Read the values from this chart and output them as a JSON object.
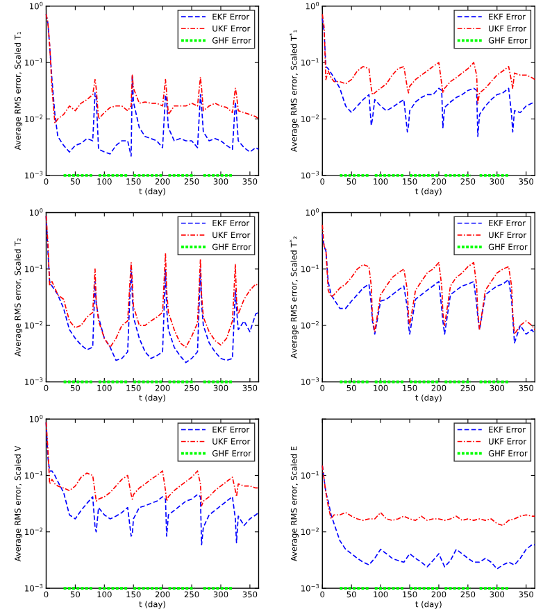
{
  "chart_data": [
    {
      "type": "line",
      "xlabel": "t (day)",
      "ylabel": "Average RMS error, Scaled T₁",
      "log": "y",
      "grid": false,
      "legend": "top right",
      "marker": "none",
      "xlim": [
        0,
        365
      ],
      "xticks": [
        0,
        50,
        100,
        150,
        200,
        250,
        300,
        350
      ],
      "ylim": [
        0.001,
        1
      ],
      "yticks": [
        {
          "value": 0.001,
          "label": "10$^{−3}$"
        },
        {
          "value": 0.01,
          "label": "10$^{−2}$"
        },
        {
          "value": 0.1,
          "label": "10$^{−1}$"
        },
        {
          "value": 1,
          "label": "10$^{0}$"
        }
      ],
      "x": [
        0,
        3,
        6,
        10,
        15,
        20,
        30,
        40,
        50,
        60,
        70,
        80,
        84,
        86,
        90,
        100,
        110,
        120,
        130,
        140,
        146,
        148,
        150,
        160,
        170,
        180,
        190,
        200,
        205,
        207,
        210,
        220,
        230,
        240,
        250,
        260,
        265,
        267,
        270,
        280,
        290,
        300,
        310,
        320,
        325,
        327,
        330,
        340,
        350,
        360,
        365
      ],
      "series": [
        {
          "name": "EKF Error",
          "color": "#0000ff",
          "line_style": "dashed",
          "values": [
            0.72,
            0.5,
            0.2,
            0.05,
            0.012,
            0.0049,
            0.0034,
            0.0026,
            0.0034,
            0.0037,
            0.0045,
            0.0041,
            0.029,
            0.024,
            0.0029,
            0.0026,
            0.0024,
            0.0034,
            0.0041,
            0.0041,
            0.0022,
            0.06,
            0.02,
            0.007,
            0.0049,
            0.0045,
            0.0041,
            0.0031,
            0.027,
            0.02,
            0.007,
            0.0041,
            0.0045,
            0.0041,
            0.0041,
            0.0031,
            0.027,
            0.017,
            0.0059,
            0.0041,
            0.0045,
            0.0041,
            0.0034,
            0.0029,
            0.02,
            0.012,
            0.0041,
            0.0031,
            0.0026,
            0.0031,
            0.0029
          ]
        },
        {
          "name": "UKF Error",
          "color": "#ff0000",
          "line_style": "dashdot",
          "values": [
            0.72,
            0.51,
            0.21,
            0.035,
            0.0084,
            0.01,
            0.012,
            0.017,
            0.014,
            0.019,
            0.022,
            0.027,
            0.05,
            0.035,
            0.01,
            0.013,
            0.016,
            0.017,
            0.017,
            0.014,
            0.017,
            0.06,
            0.035,
            0.019,
            0.02,
            0.019,
            0.019,
            0.017,
            0.05,
            0.029,
            0.012,
            0.017,
            0.017,
            0.017,
            0.019,
            0.017,
            0.055,
            0.035,
            0.014,
            0.017,
            0.019,
            0.017,
            0.016,
            0.013,
            0.035,
            0.027,
            0.014,
            0.013,
            0.012,
            0.011,
            0.01
          ]
        },
        {
          "name": "GHF Error",
          "color": "#00ff00",
          "line_style": "dotted",
          "x": [
            30,
            80,
            85,
            90,
            140,
            145,
            150,
            200,
            205,
            210,
            255,
            260,
            270,
            320
          ],
          "values": [
            0.001,
            0.001,
            null,
            0.001,
            0.001,
            null,
            0.001,
            0.001,
            null,
            0.001,
            0.001,
            null,
            0.001,
            0.001
          ]
        }
      ]
    },
    {
      "type": "line",
      "xlabel": "t (day)",
      "ylabel": "Average RMS error, Scaled T$^{*}$₁",
      "log": "y",
      "grid": false,
      "legend": "top right",
      "marker": "none",
      "xlim": [
        0,
        365
      ],
      "xticks": [
        0,
        50,
        100,
        150,
        200,
        250,
        300,
        350
      ],
      "ylim": [
        0.001,
        1
      ],
      "yticks": [
        {
          "value": 0.001,
          "label": "10$^{−3}$"
        },
        {
          "value": 0.01,
          "label": "10$^{−2}$"
        },
        {
          "value": 0.1,
          "label": "10$^{−1}$"
        },
        {
          "value": 1,
          "label": "10$^{0}$"
        }
      ],
      "x": [
        0,
        3,
        6,
        10,
        15,
        20,
        30,
        40,
        50,
        60,
        70,
        80,
        84,
        86,
        90,
        100,
        110,
        120,
        130,
        140,
        146,
        148,
        150,
        160,
        170,
        180,
        190,
        200,
        205,
        207,
        210,
        220,
        230,
        240,
        250,
        260,
        265,
        267,
        270,
        280,
        290,
        300,
        310,
        320,
        325,
        327,
        330,
        340,
        350,
        360,
        365
      ],
      "series": [
        {
          "name": "EKF Error",
          "color": "#0000ff",
          "line_style": "dashed",
          "values": [
            0.61,
            0.35,
            0.085,
            0.078,
            0.065,
            0.054,
            0.035,
            0.017,
            0.013,
            0.017,
            0.022,
            0.027,
            0.0077,
            0.01,
            0.022,
            0.017,
            0.014,
            0.016,
            0.019,
            0.022,
            0.0059,
            0.0077,
            0.014,
            0.02,
            0.024,
            0.027,
            0.027,
            0.035,
            0.032,
            0.007,
            0.016,
            0.02,
            0.024,
            0.027,
            0.032,
            0.035,
            0.032,
            0.0049,
            0.012,
            0.017,
            0.022,
            0.027,
            0.029,
            0.035,
            0.012,
            0.0059,
            0.014,
            0.013,
            0.017,
            0.019,
            0.02
          ]
        },
        {
          "name": "UKF Error",
          "color": "#ff0000",
          "line_style": "dashdot",
          "values": [
            0.72,
            0.42,
            0.05,
            0.071,
            0.054,
            0.046,
            0.046,
            0.042,
            0.05,
            0.071,
            0.085,
            0.078,
            0.035,
            0.027,
            0.029,
            0.035,
            0.042,
            0.06,
            0.078,
            0.085,
            0.035,
            0.029,
            0.038,
            0.05,
            0.06,
            0.071,
            0.085,
            0.1,
            0.042,
            0.029,
            0.035,
            0.046,
            0.054,
            0.065,
            0.078,
            0.1,
            0.06,
            0.019,
            0.029,
            0.035,
            0.046,
            0.06,
            0.071,
            0.085,
            0.046,
            0.035,
            0.065,
            0.06,
            0.06,
            0.054,
            0.05
          ]
        },
        {
          "name": "GHF Error",
          "color": "#00ff00",
          "line_style": "dotted",
          "x": [
            30,
            80,
            85,
            90,
            140,
            145,
            150,
            200,
            205,
            210,
            255,
            260,
            270,
            320
          ],
          "values": [
            0.001,
            0.001,
            null,
            0.001,
            0.001,
            null,
            0.001,
            0.001,
            null,
            0.001,
            0.001,
            null,
            0.001,
            0.001
          ]
        }
      ]
    },
    {
      "type": "line",
      "xlabel": "t (day)",
      "ylabel": "Average RMS error, Scaled T₂",
      "log": "y",
      "grid": false,
      "legend": "top right",
      "marker": "none",
      "xlim": [
        0,
        365
      ],
      "xticks": [
        0,
        50,
        100,
        150,
        200,
        250,
        300,
        350
      ],
      "ylim": [
        0.001,
        1
      ],
      "yticks": [
        {
          "value": 0.001,
          "label": "10$^{−3}$"
        },
        {
          "value": 0.01,
          "label": "10$^{−2}$"
        },
        {
          "value": 0.1,
          "label": "10$^{−1}$"
        },
        {
          "value": 1,
          "label": "10$^{0}$"
        }
      ],
      "x": [
        0,
        3,
        6,
        10,
        15,
        20,
        30,
        40,
        50,
        60,
        70,
        80,
        84,
        86,
        90,
        100,
        110,
        120,
        130,
        140,
        146,
        148,
        150,
        160,
        170,
        180,
        190,
        200,
        205,
        207,
        210,
        220,
        230,
        240,
        250,
        260,
        265,
        267,
        270,
        280,
        290,
        300,
        310,
        320,
        325,
        327,
        330,
        340,
        350,
        360,
        365
      ],
      "series": [
        {
          "name": "EKF Error",
          "color": "#0000ff",
          "line_style": "dashed",
          "values": [
            0.87,
            0.21,
            0.06,
            0.05,
            0.042,
            0.035,
            0.02,
            0.0084,
            0.0059,
            0.0045,
            0.0037,
            0.0041,
            0.06,
            0.024,
            0.014,
            0.0059,
            0.0041,
            0.0024,
            0.0026,
            0.0034,
            0.12,
            0.035,
            0.014,
            0.0059,
            0.0034,
            0.0026,
            0.0029,
            0.0034,
            0.1,
            0.02,
            0.0084,
            0.0041,
            0.0029,
            0.0022,
            0.0026,
            0.0034,
            0.1,
            0.024,
            0.01,
            0.0049,
            0.0034,
            0.0026,
            0.0024,
            0.0026,
            0.042,
            0.02,
            0.0084,
            0.012,
            0.0077,
            0.016,
            0.017
          ]
        },
        {
          "name": "UKF Error",
          "color": "#ff0000",
          "line_style": "dashdot",
          "values": [
            0.87,
            0.3,
            0.05,
            0.06,
            0.046,
            0.035,
            0.029,
            0.012,
            0.0091,
            0.01,
            0.014,
            0.017,
            0.1,
            0.027,
            0.012,
            0.0059,
            0.0041,
            0.0059,
            0.01,
            0.012,
            0.13,
            0.06,
            0.022,
            0.01,
            0.01,
            0.012,
            0.014,
            0.017,
            0.19,
            0.042,
            0.017,
            0.0084,
            0.0049,
            0.0041,
            0.0064,
            0.011,
            0.15,
            0.035,
            0.014,
            0.0077,
            0.0054,
            0.0045,
            0.0059,
            0.012,
            0.12,
            0.029,
            0.016,
            0.029,
            0.042,
            0.054,
            0.05
          ]
        },
        {
          "name": "GHF Error",
          "color": "#00ff00",
          "line_style": "dotted",
          "x": [
            30,
            80,
            85,
            90,
            140,
            145,
            150,
            200,
            205,
            210,
            255,
            260,
            270,
            320
          ],
          "values": [
            0.001,
            0.001,
            null,
            0.001,
            0.001,
            null,
            0.001,
            0.001,
            null,
            0.001,
            0.001,
            null,
            0.001,
            0.001
          ]
        }
      ]
    },
    {
      "type": "line",
      "xlabel": "t (day)",
      "ylabel": "Average RMS error, Scaled T$^{*}$₂",
      "log": "y",
      "grid": false,
      "legend": "top right",
      "marker": "none",
      "xlim": [
        0,
        365
      ],
      "xticks": [
        0,
        50,
        100,
        150,
        200,
        250,
        300,
        350
      ],
      "ylim": [
        0.001,
        1
      ],
      "yticks": [
        {
          "value": 0.001,
          "label": "10$^{−3}$"
        },
        {
          "value": 0.01,
          "label": "10$^{−2}$"
        },
        {
          "value": 0.1,
          "label": "10$^{−1}$"
        },
        {
          "value": 1,
          "label": "10$^{0}$"
        }
      ],
      "x": [
        0,
        3,
        6,
        10,
        15,
        20,
        30,
        40,
        50,
        60,
        70,
        80,
        84,
        86,
        90,
        100,
        110,
        120,
        130,
        140,
        146,
        148,
        150,
        160,
        170,
        180,
        190,
        200,
        205,
        207,
        210,
        220,
        230,
        240,
        250,
        260,
        265,
        267,
        270,
        280,
        290,
        300,
        310,
        320,
        325,
        327,
        330,
        340,
        350,
        360,
        365
      ],
      "series": [
        {
          "name": "EKF Error",
          "color": "#0000ff",
          "line_style": "dashed",
          "values": [
            0.42,
            0.25,
            0.21,
            0.06,
            0.035,
            0.029,
            0.02,
            0.02,
            0.027,
            0.035,
            0.046,
            0.054,
            0.024,
            0.012,
            0.007,
            0.027,
            0.029,
            0.035,
            0.042,
            0.05,
            0.02,
            0.01,
            0.007,
            0.029,
            0.035,
            0.042,
            0.05,
            0.06,
            0.02,
            0.012,
            0.007,
            0.035,
            0.042,
            0.05,
            0.054,
            0.06,
            0.024,
            0.014,
            0.0084,
            0.035,
            0.042,
            0.05,
            0.054,
            0.065,
            0.029,
            0.014,
            0.0049,
            0.01,
            0.007,
            0.0084,
            0.007
          ]
        },
        {
          "name": "UKF Error",
          "color": "#ff0000",
          "line_style": "dashdot",
          "values": [
            0.61,
            0.25,
            0.23,
            0.042,
            0.032,
            0.035,
            0.046,
            0.054,
            0.071,
            0.1,
            0.12,
            0.11,
            0.05,
            0.014,
            0.0077,
            0.035,
            0.05,
            0.071,
            0.085,
            0.1,
            0.042,
            0.014,
            0.01,
            0.042,
            0.06,
            0.085,
            0.1,
            0.13,
            0.05,
            0.017,
            0.01,
            0.05,
            0.071,
            0.085,
            0.11,
            0.13,
            0.05,
            0.017,
            0.0084,
            0.042,
            0.06,
            0.085,
            0.1,
            0.11,
            0.05,
            0.017,
            0.007,
            0.01,
            0.012,
            0.01,
            0.0084
          ]
        },
        {
          "name": "GHF Error",
          "color": "#00ff00",
          "line_style": "dotted",
          "x": [
            30,
            80,
            85,
            90,
            140,
            145,
            150,
            200,
            205,
            210,
            255,
            260,
            270,
            320
          ],
          "values": [
            0.001,
            0.001,
            null,
            0.001,
            0.001,
            null,
            0.001,
            0.001,
            null,
            0.001,
            0.001,
            null,
            0.001,
            0.001
          ]
        }
      ]
    },
    {
      "type": "line",
      "xlabel": "t (day)",
      "ylabel": "Average RMS error, Scaled V",
      "log": "y",
      "grid": false,
      "legend": "top right",
      "marker": "none",
      "xlim": [
        0,
        365
      ],
      "xticks": [
        0,
        50,
        100,
        150,
        200,
        250,
        300,
        350
      ],
      "ylim": [
        0.001,
        1
      ],
      "yticks": [
        {
          "value": 0.001,
          "label": "10$^{−3}$"
        },
        {
          "value": 0.01,
          "label": "10$^{−2}$"
        },
        {
          "value": 0.1,
          "label": "10$^{−1}$"
        },
        {
          "value": 1,
          "label": "10$^{0}$"
        }
      ],
      "x": [
        0,
        3,
        6,
        10,
        15,
        20,
        30,
        40,
        50,
        60,
        70,
        80,
        84,
        86,
        90,
        100,
        110,
        120,
        130,
        140,
        146,
        148,
        150,
        160,
        170,
        180,
        190,
        200,
        205,
        207,
        210,
        220,
        230,
        240,
        250,
        260,
        265,
        267,
        270,
        280,
        290,
        300,
        310,
        320,
        325,
        327,
        330,
        340,
        350,
        360,
        365
      ],
      "series": [
        {
          "name": "EKF Error",
          "color": "#0000ff",
          "line_style": "dashed",
          "values": [
            0.87,
            0.21,
            0.12,
            0.12,
            0.1,
            0.078,
            0.05,
            0.02,
            0.017,
            0.024,
            0.032,
            0.042,
            0.012,
            0.01,
            0.027,
            0.02,
            0.017,
            0.019,
            0.022,
            0.027,
            0.0084,
            0.0091,
            0.017,
            0.027,
            0.029,
            0.032,
            0.035,
            0.042,
            0.038,
            0.0084,
            0.02,
            0.024,
            0.029,
            0.035,
            0.038,
            0.046,
            0.042,
            0.0059,
            0.012,
            0.02,
            0.024,
            0.029,
            0.035,
            0.042,
            0.017,
            0.0064,
            0.019,
            0.013,
            0.017,
            0.02,
            0.022
          ]
        },
        {
          "name": "UKF Error",
          "color": "#ff0000",
          "line_style": "dashdot",
          "values": [
            0.87,
            0.3,
            0.071,
            0.085,
            0.071,
            0.065,
            0.06,
            0.054,
            0.065,
            0.093,
            0.11,
            0.1,
            0.05,
            0.035,
            0.038,
            0.042,
            0.05,
            0.065,
            0.085,
            0.1,
            0.046,
            0.038,
            0.046,
            0.06,
            0.071,
            0.085,
            0.1,
            0.12,
            0.054,
            0.035,
            0.042,
            0.054,
            0.065,
            0.078,
            0.093,
            0.12,
            0.071,
            0.029,
            0.035,
            0.042,
            0.054,
            0.065,
            0.078,
            0.093,
            0.054,
            0.042,
            0.071,
            0.065,
            0.065,
            0.06,
            0.06
          ]
        },
        {
          "name": "GHF Error",
          "color": "#00ff00",
          "line_style": "dotted",
          "x": [
            30,
            80,
            85,
            90,
            140,
            145,
            150,
            200,
            205,
            210,
            255,
            260,
            270,
            320
          ],
          "values": [
            0.001,
            0.001,
            null,
            0.001,
            0.001,
            null,
            0.001,
            0.001,
            null,
            0.001,
            0.001,
            null,
            0.001,
            0.001
          ]
        }
      ]
    },
    {
      "type": "line",
      "xlabel": "t (day)",
      "ylabel": "Average RMS error, Scaled E",
      "log": "y",
      "grid": false,
      "legend": "top right",
      "marker": "none",
      "xlim": [
        0,
        365
      ],
      "xticks": [
        0,
        50,
        100,
        150,
        200,
        250,
        300,
        350
      ],
      "ylim": [
        0.001,
        1
      ],
      "yticks": [
        {
          "value": 0.001,
          "label": "10$^{−3}$"
        },
        {
          "value": 0.01,
          "label": "10$^{−2}$"
        },
        {
          "value": 0.1,
          "label": "10$^{−1}$"
        },
        {
          "value": 1,
          "label": null
        }
      ],
      "x": [
        0,
        3,
        6,
        10,
        15,
        20,
        30,
        40,
        50,
        60,
        70,
        80,
        90,
        100,
        110,
        120,
        130,
        140,
        150,
        160,
        170,
        180,
        190,
        200,
        210,
        220,
        230,
        240,
        250,
        260,
        270,
        280,
        290,
        300,
        310,
        320,
        330,
        340,
        350,
        360,
        365
      ],
      "series": [
        {
          "name": "EKF Error",
          "color": "#0000ff",
          "line_style": "dashed",
          "values": [
            0.15,
            0.085,
            0.05,
            0.035,
            0.02,
            0.014,
            0.007,
            0.0049,
            0.0041,
            0.0034,
            0.0029,
            0.0026,
            0.0034,
            0.0049,
            0.0041,
            0.0034,
            0.0031,
            0.0029,
            0.0041,
            0.0034,
            0.0029,
            0.0024,
            0.0031,
            0.0041,
            0.0024,
            0.0031,
            0.0049,
            0.0041,
            0.0034,
            0.0029,
            0.0029,
            0.0034,
            0.0029,
            0.0022,
            0.0026,
            0.0029,
            0.0026,
            0.0034,
            0.0049,
            0.0059,
            0.0059
          ]
        },
        {
          "name": "UKF Error",
          "color": "#ff0000",
          "line_style": "dashdot",
          "values": [
            0.15,
            0.085,
            0.05,
            0.029,
            0.017,
            0.02,
            0.02,
            0.022,
            0.019,
            0.017,
            0.016,
            0.017,
            0.017,
            0.022,
            0.017,
            0.016,
            0.017,
            0.019,
            0.017,
            0.016,
            0.019,
            0.016,
            0.017,
            0.017,
            0.016,
            0.017,
            0.019,
            0.016,
            0.017,
            0.016,
            0.017,
            0.016,
            0.017,
            0.014,
            0.013,
            0.016,
            0.017,
            0.019,
            0.02,
            0.019,
            0.019
          ]
        },
        {
          "name": "GHF Error",
          "color": "#00ff00",
          "line_style": "dotted",
          "x": [
            30,
            80,
            85,
            90,
            140,
            145,
            150,
            200,
            205,
            210,
            255,
            260,
            270,
            320
          ],
          "values": [
            0.001,
            0.001,
            null,
            0.001,
            0.001,
            null,
            0.001,
            0.001,
            null,
            0.001,
            0.001,
            null,
            0.001,
            0.001
          ]
        }
      ]
    }
  ]
}
